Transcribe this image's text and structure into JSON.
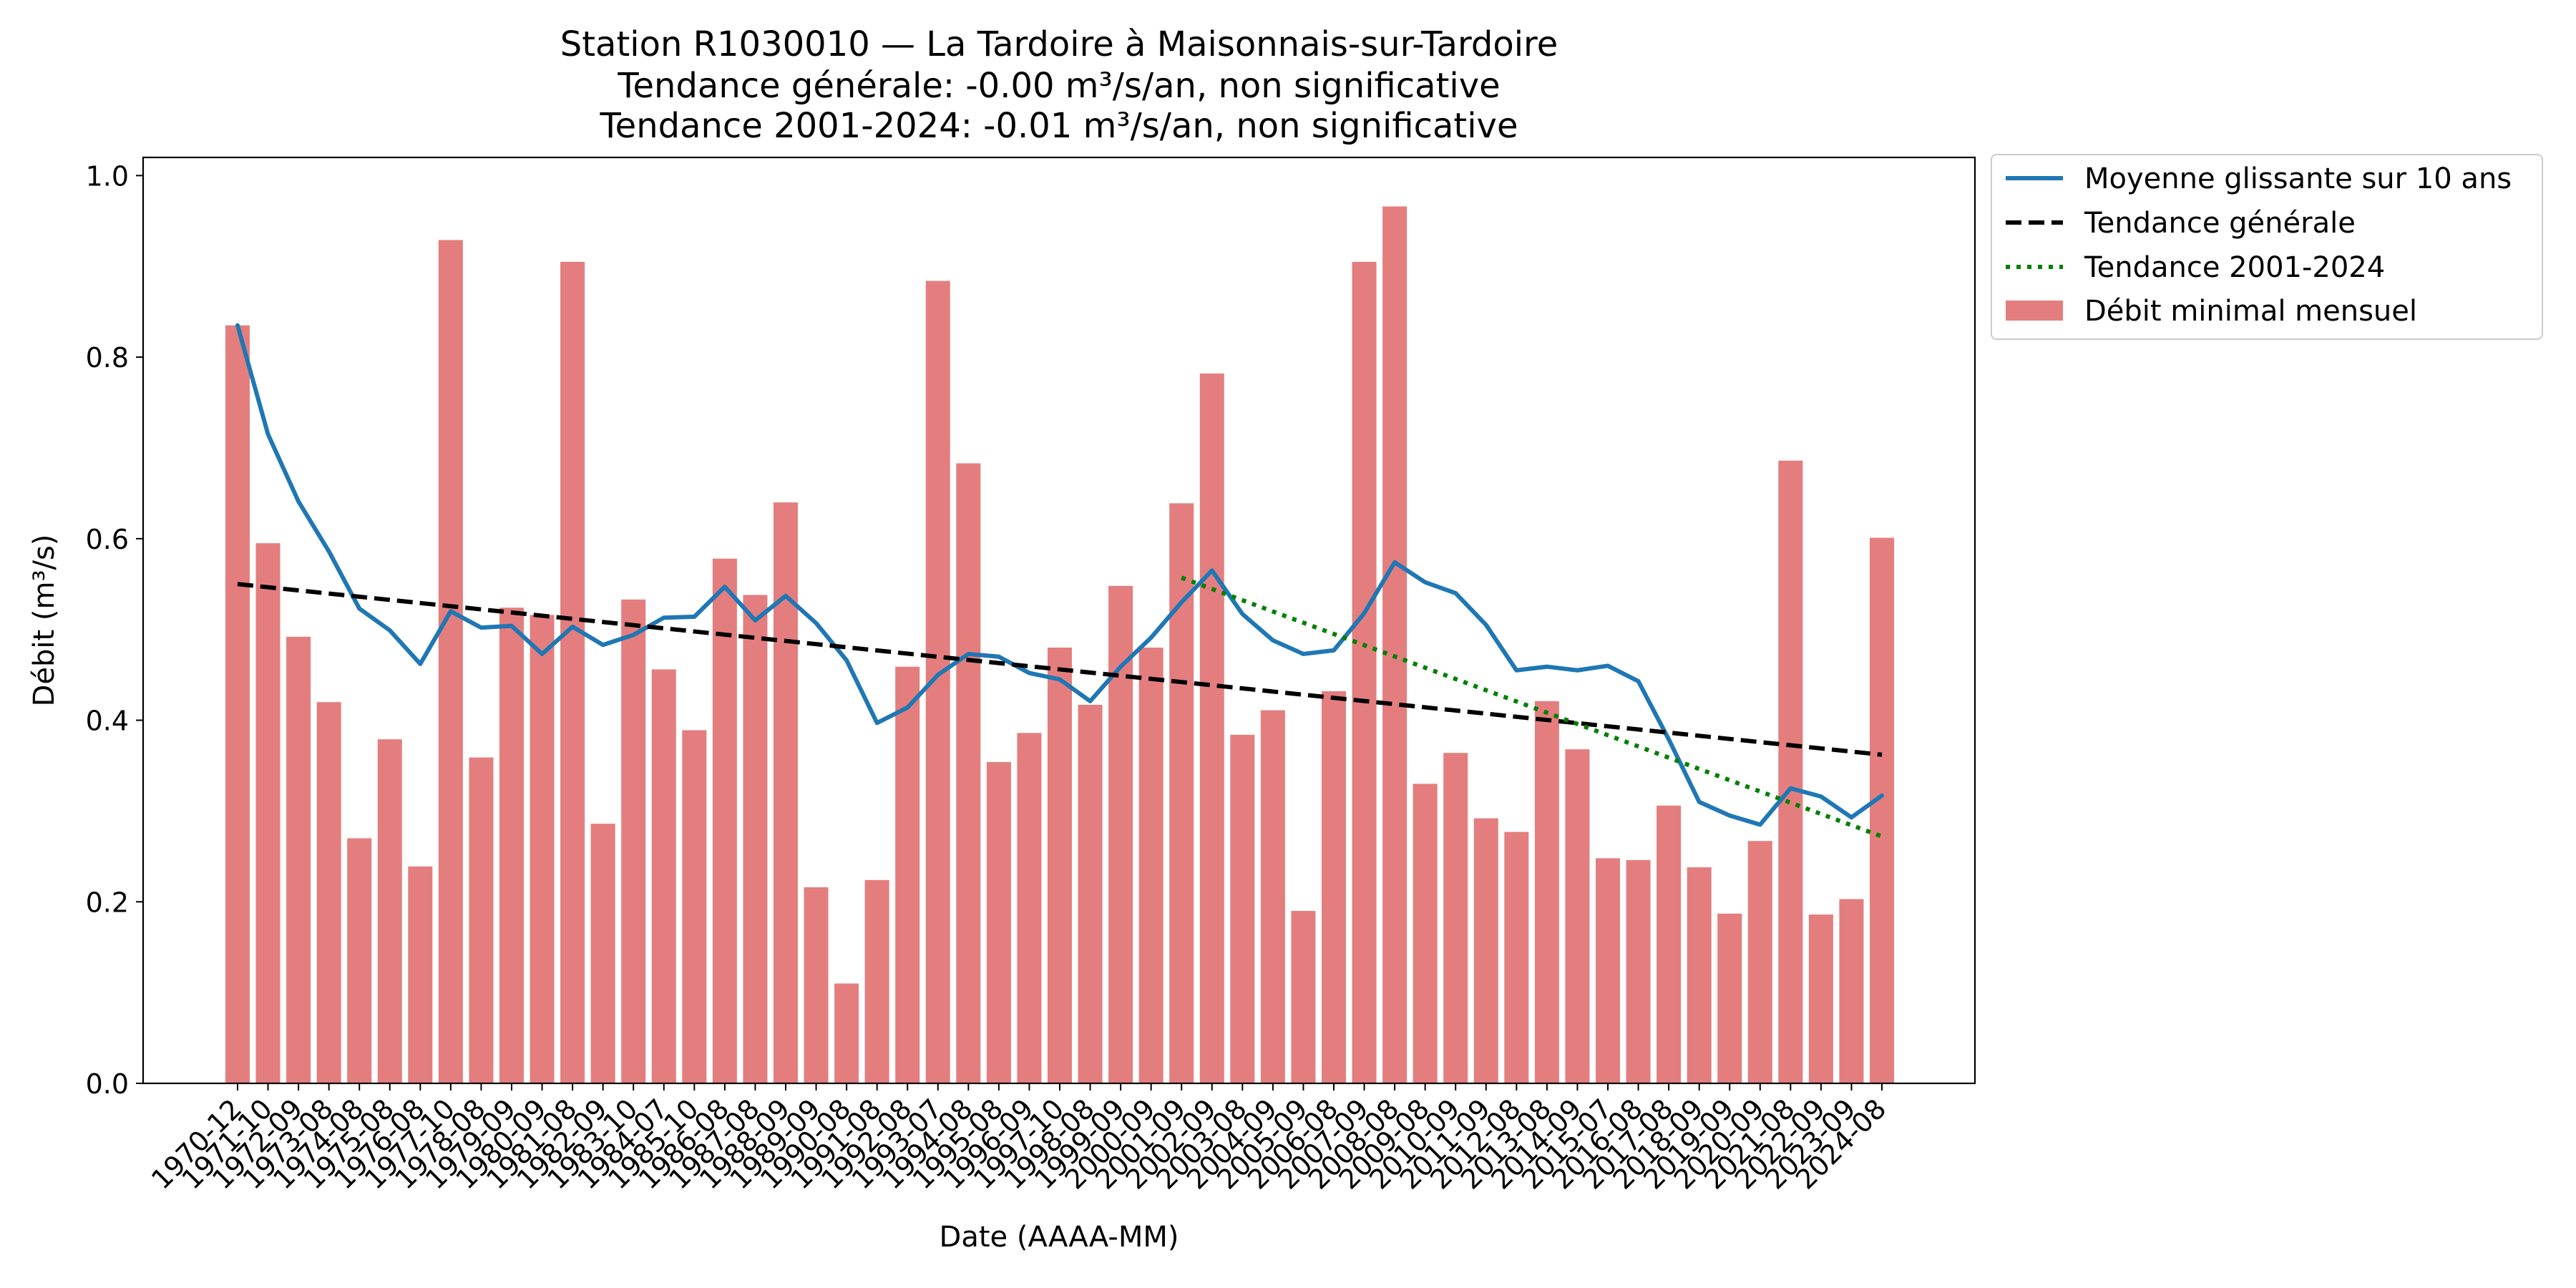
{
  "chart_data": {
    "type": "bar",
    "title_lines": [
      "Station R1030010 — La Tardoire à Maisonnais-sur-Tardoire",
      "Tendance générale: -0.00 m³/s/an, non significative",
      "Tendance 2001-2024: -0.01 m³/s/an, non significative"
    ],
    "xlabel": "Date (AAAA-MM)",
    "ylabel": "Débit (m³/s)",
    "ylim": [
      0,
      1.02
    ],
    "yticks": [
      0.0,
      0.2,
      0.4,
      0.6,
      0.8,
      1.0
    ],
    "grid": false,
    "legend_position": "outside-top-right",
    "categories": [
      "1970-12",
      "1971-10",
      "1972-09",
      "1973-08",
      "1974-08",
      "1975-08",
      "1976-08",
      "1977-10",
      "1978-08",
      "1979-09",
      "1980-09",
      "1981-08",
      "1982-09",
      "1983-10",
      "1984-07",
      "1985-10",
      "1986-08",
      "1987-08",
      "1988-09",
      "1989-09",
      "1990-08",
      "1991-08",
      "1992-08",
      "1993-07",
      "1994-08",
      "1995-08",
      "1996-09",
      "1997-10",
      "1998-08",
      "1999-09",
      "2000-09",
      "2001-09",
      "2002-09",
      "2003-08",
      "2004-09",
      "2005-09",
      "2006-08",
      "2007-09",
      "2008-08",
      "2009-08",
      "2010-09",
      "2011-09",
      "2012-08",
      "2013-08",
      "2014-09",
      "2015-07",
      "2016-08",
      "2017-08",
      "2018-09",
      "2019-09",
      "2020-09",
      "2021-08",
      "2022-09",
      "2023-09",
      "2024-08"
    ],
    "series": [
      {
        "name": "Débit minimal mensuel",
        "kind": "bar",
        "color": "#e47e7e",
        "values": [
          0.835,
          0.595,
          0.492,
          0.42,
          0.27,
          0.379,
          0.239,
          0.929,
          0.359,
          0.524,
          0.516,
          0.905,
          0.286,
          0.533,
          0.456,
          0.389,
          0.578,
          0.538,
          0.64,
          0.216,
          0.11,
          0.224,
          0.459,
          0.884,
          0.683,
          0.354,
          0.386,
          0.48,
          0.417,
          0.548,
          0.48,
          0.639,
          0.782,
          0.384,
          0.411,
          0.19,
          0.432,
          0.905,
          0.966,
          0.33,
          0.364,
          0.292,
          0.277,
          0.421,
          0.368,
          0.248,
          0.246,
          0.306,
          0.238,
          0.187,
          0.267,
          0.686,
          0.186,
          0.203,
          0.601
        ]
      },
      {
        "name": "Moyenne glissante sur 10 ans",
        "kind": "line",
        "color": "#1f77b4",
        "style": "solid",
        "values": [
          0.835,
          0.715,
          0.641,
          0.586,
          0.523,
          0.499,
          0.462,
          0.52,
          0.502,
          0.504,
          0.473,
          0.503,
          0.483,
          0.494,
          0.513,
          0.514,
          0.547,
          0.51,
          0.537,
          0.507,
          0.466,
          0.397,
          0.414,
          0.45,
          0.473,
          0.47,
          0.452,
          0.445,
          0.421,
          0.459,
          0.491,
          0.53,
          0.565,
          0.517,
          0.488,
          0.473,
          0.477,
          0.518,
          0.574,
          0.552,
          0.54,
          0.505,
          0.455,
          0.459,
          0.455,
          0.46,
          0.443,
          0.379,
          0.31,
          0.295,
          0.285,
          0.325,
          0.316,
          0.293,
          0.317
        ]
      },
      {
        "name": "Tendance générale",
        "kind": "line",
        "color": "#000000",
        "style": "dashed",
        "from_index": 0,
        "to_index": 54,
        "start": 0.55,
        "end": 0.362
      },
      {
        "name": "Tendance 2001-2024",
        "kind": "line",
        "color": "#008000",
        "style": "dotted",
        "from_index": 31,
        "to_index": 54,
        "start": 0.557,
        "end": 0.272
      }
    ]
  }
}
